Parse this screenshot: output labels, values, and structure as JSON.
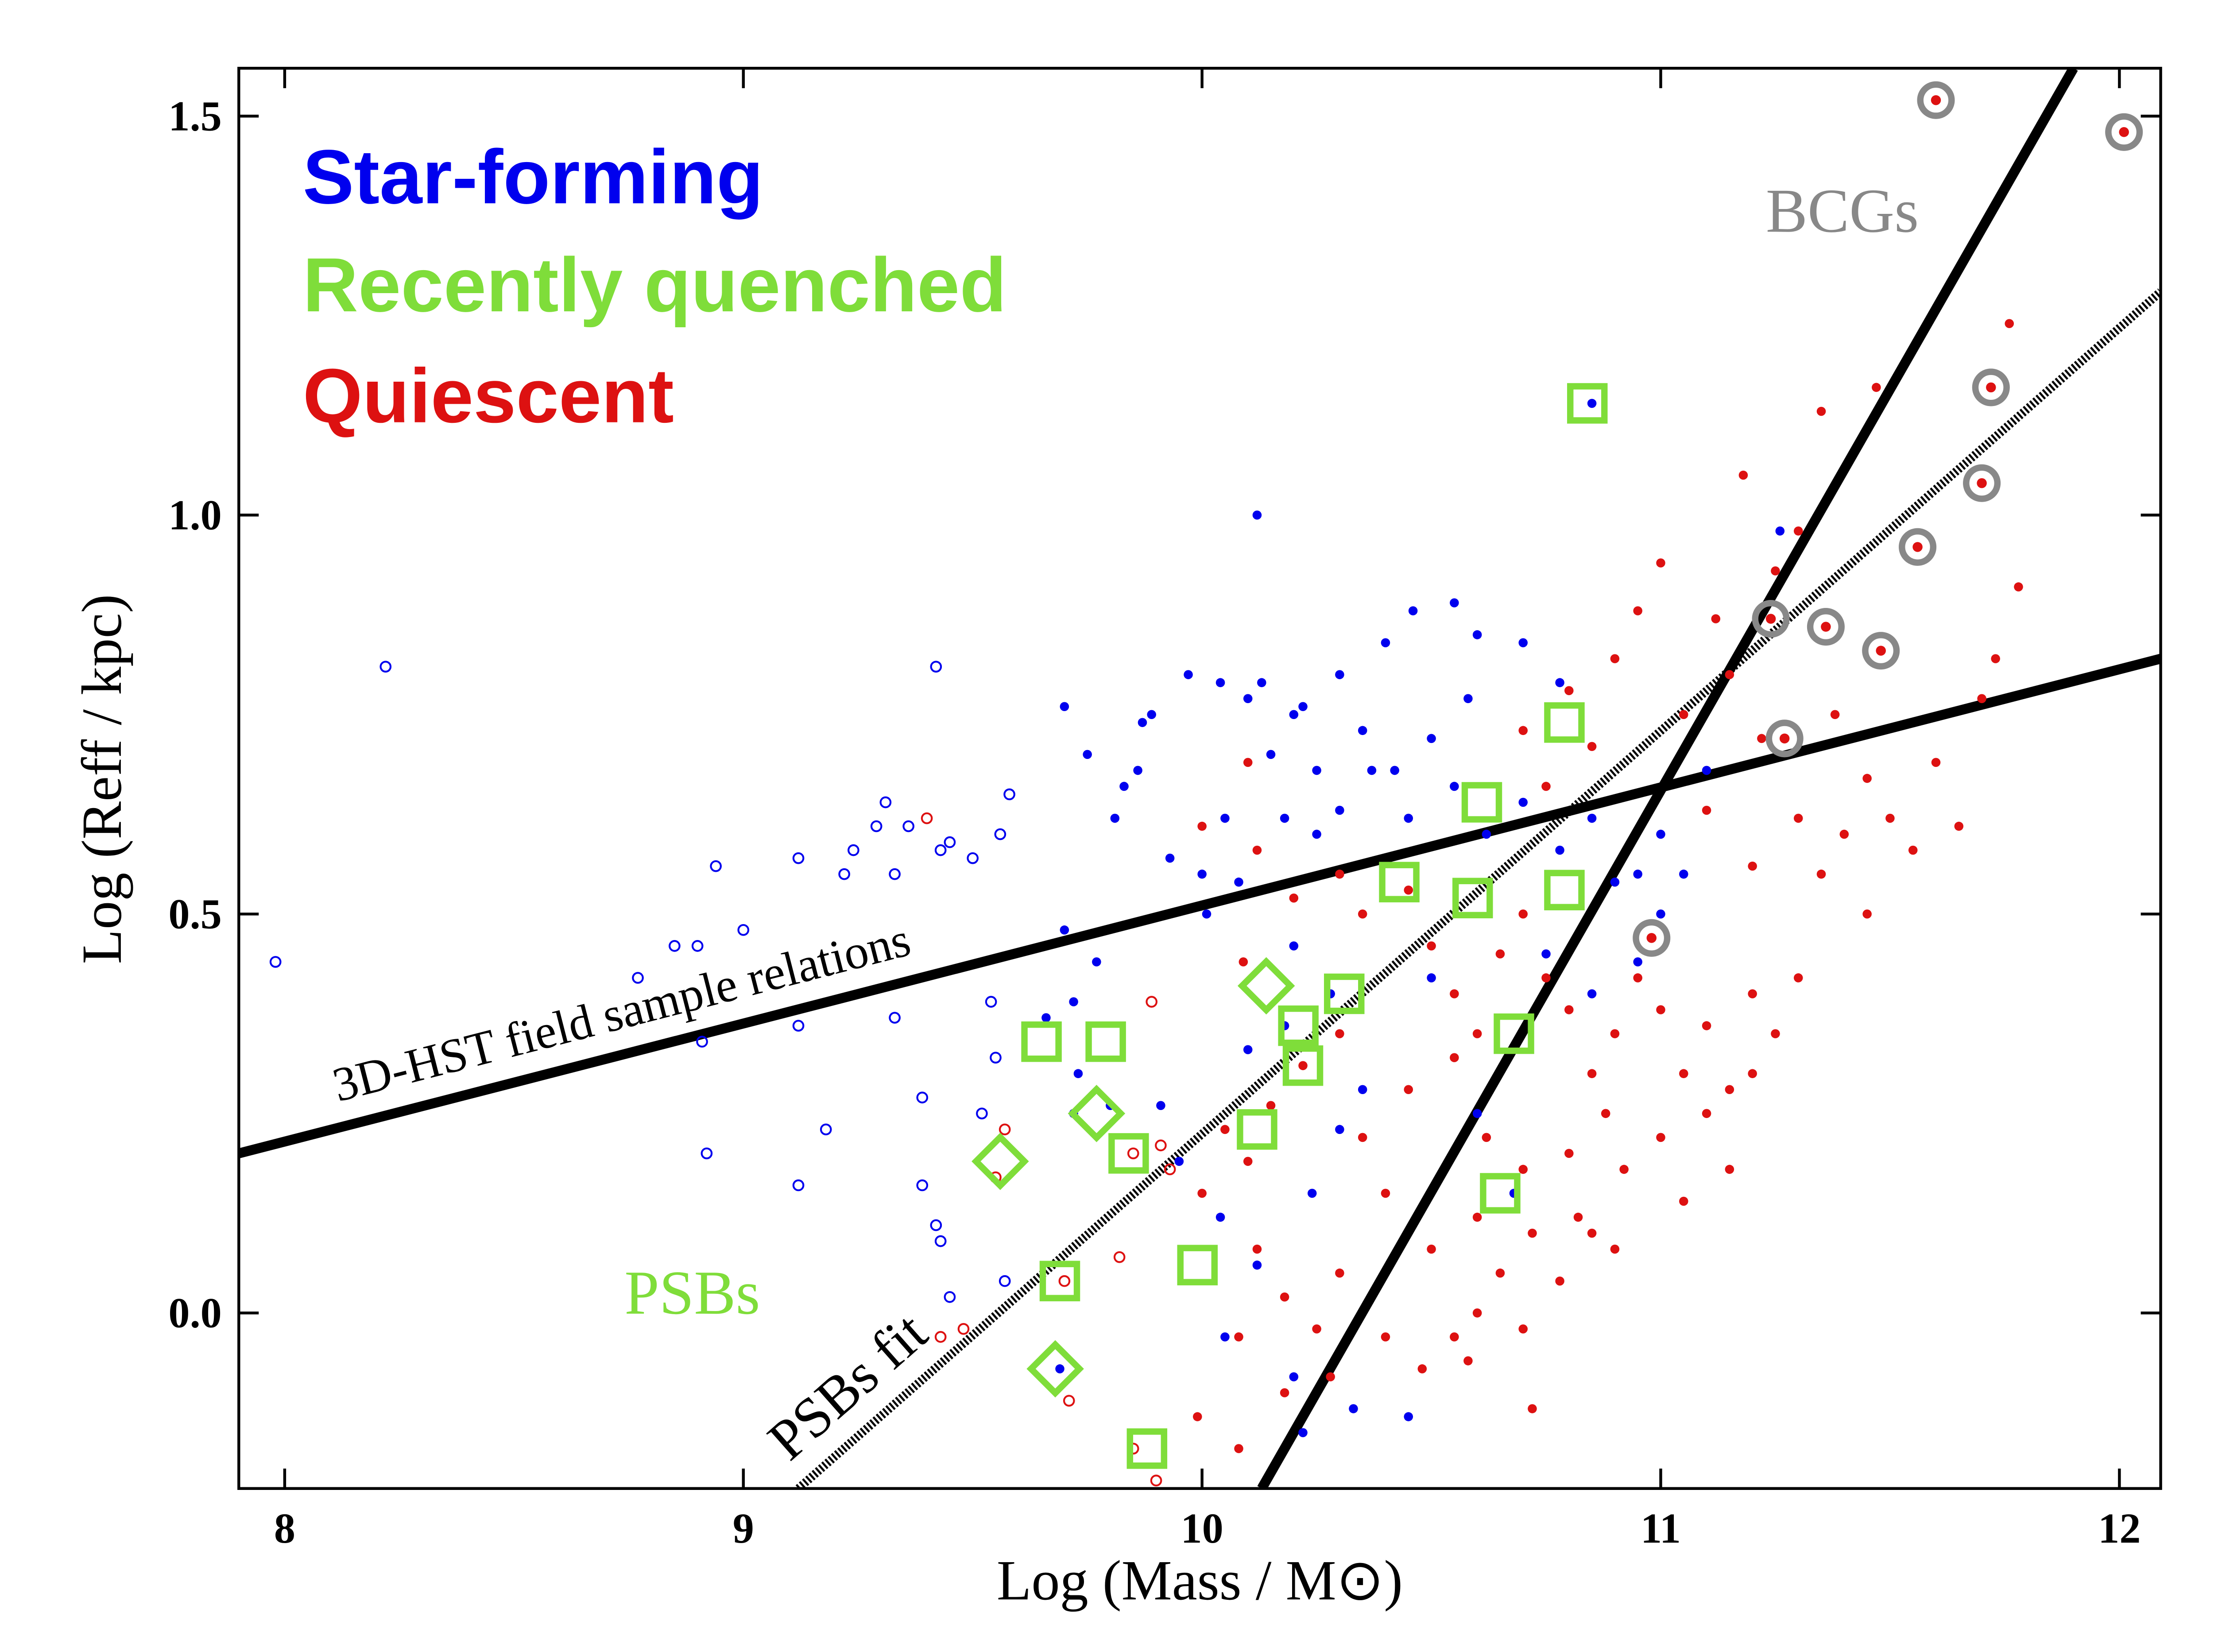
{
  "chart_data": {
    "type": "scatter",
    "xlabel": "Log (Mass / M⊙)",
    "ylabel": "Log (Reff / kpc)",
    "xlim": [
      7.9,
      12.09
    ],
    "ylim": [
      -0.22,
      1.56
    ],
    "xticks": [
      8,
      9,
      10,
      11,
      12
    ],
    "yticks": [
      {
        "value": 0,
        "label": "0.0"
      },
      0.5,
      {
        "value": 1,
        "label": "1.0"
      },
      1.5
    ],
    "series": [
      {
        "name": "Star-forming",
        "color": "#0000ee",
        "x": [
          10.12,
          9.7,
          9.75,
          9.81,
          9.83,
          9.87,
          9.89,
          9.86,
          9.97,
          10.04,
          10.1,
          10.13,
          10.2,
          10.22,
          10.3,
          10.4,
          10.46,
          10.55,
          10.6,
          10.7,
          10.78,
          10.58,
          10.5,
          10.42,
          10.35,
          10.25,
          10.15,
          10.05,
          10.0,
          9.93,
          10.01,
          10.08,
          10.18,
          10.25,
          10.3,
          10.37,
          10.45,
          10.55,
          10.62,
          10.7,
          10.78,
          10.9,
          10.95,
          11.0,
          11.1,
          11.26,
          10.85,
          9.7,
          9.77,
          9.72,
          9.66,
          9.73,
          9.72,
          9.8,
          9.91,
          9.95,
          10.04,
          10.1,
          10.2,
          10.28,
          10.18,
          10.35,
          10.24,
          10.3,
          10.12,
          10.05,
          10.2,
          10.33,
          10.22,
          10.45,
          10.6,
          10.68,
          10.75,
          10.85,
          10.95,
          11.0,
          10.85,
          11.05,
          10.5,
          9.69
        ],
        "values": [
          1.0,
          0.76,
          0.7,
          0.62,
          0.66,
          0.74,
          0.75,
          0.68,
          0.8,
          0.79,
          0.77,
          0.79,
          0.75,
          0.76,
          0.8,
          0.84,
          0.88,
          0.89,
          0.85,
          0.84,
          0.79,
          0.77,
          0.72,
          0.68,
          0.73,
          0.68,
          0.7,
          0.62,
          0.55,
          0.57,
          0.5,
          0.54,
          0.62,
          0.6,
          0.63,
          0.68,
          0.62,
          0.66,
          0.6,
          0.64,
          0.58,
          0.54,
          0.55,
          0.6,
          0.68,
          0.98,
          1.14,
          0.48,
          0.44,
          0.39,
          0.37,
          0.3,
          0.25,
          0.26,
          0.26,
          0.19,
          0.12,
          0.33,
          0.46,
          0.4,
          0.36,
          0.28,
          0.15,
          0.23,
          0.06,
          -0.03,
          -0.08,
          -0.12,
          -0.15,
          -0.13,
          0.25,
          0.15,
          0.45,
          0.4,
          0.44,
          0.5,
          0.62,
          0.55,
          0.42,
          -0.07
        ],
        "open": {
          "x": [
            7.98,
            8.22,
            8.77,
            8.85,
            8.9,
            8.94,
            9.0,
            9.12,
            9.22,
            9.24,
            9.29,
            9.31,
            9.33,
            9.36,
            9.43,
            9.45,
            9.5,
            9.56,
            9.58,
            9.42,
            9.33,
            9.12,
            8.91,
            8.92,
            9.12,
            9.18,
            9.39,
            9.54,
            9.55,
            9.52,
            9.39,
            9.42,
            9.43,
            9.57,
            9.45
          ],
          "values": [
            0.44,
            0.81,
            0.42,
            0.46,
            0.46,
            0.56,
            0.48,
            0.57,
            0.55,
            0.58,
            0.61,
            0.64,
            0.55,
            0.61,
            0.58,
            0.59,
            0.57,
            0.6,
            0.65,
            0.81,
            0.37,
            0.36,
            0.34,
            0.2,
            0.16,
            0.23,
            0.27,
            0.39,
            0.32,
            0.25,
            0.16,
            0.11,
            0.09,
            0.04,
            0.02
          ]
        }
      },
      {
        "name": "Recently quenched",
        "color": "#7fdd3a",
        "x": [
          10.84,
          10.79,
          10.61,
          10.43,
          10.59,
          10.79,
          10.31,
          9.65,
          9.79,
          10.21,
          10.22,
          10.68,
          10.12,
          9.84,
          10.65,
          9.99,
          9.69,
          9.88,
          10.14,
          9.77,
          9.56,
          9.68
        ],
        "values": [
          1.14,
          0.74,
          0.64,
          0.54,
          0.52,
          0.53,
          0.4,
          0.34,
          0.34,
          0.36,
          0.31,
          0.35,
          0.23,
          0.2,
          0.15,
          0.06,
          0.04,
          -0.17,
          0.41,
          0.25,
          0.19,
          -0.07
        ],
        "markers": [
          "square",
          "square",
          "square",
          "square",
          "square",
          "square",
          "square",
          "square",
          "square",
          "square",
          "square",
          "square",
          "square",
          "square",
          "square",
          "square",
          "square",
          "square",
          "diamond",
          "diamond",
          "diamond",
          "diamond"
        ]
      },
      {
        "name": "Quiescent",
        "color": "#dd1111",
        "x": [
          10.0,
          10.1,
          10.12,
          10.09,
          10.2,
          10.3,
          10.35,
          10.45,
          10.5,
          10.55,
          10.6,
          10.65,
          10.7,
          10.75,
          10.8,
          10.85,
          10.9,
          10.95,
          11.0,
          11.05,
          11.1,
          11.15,
          11.2,
          11.25,
          11.3,
          11.35,
          11.4,
          11.45,
          11.5,
          11.55,
          11.6,
          11.65,
          11.7,
          11.73,
          11.78,
          11.76,
          11.47,
          11.35,
          11.3,
          11.25,
          11.18,
          11.12,
          11.0,
          10.95,
          10.9,
          10.8,
          10.7,
          10.75,
          10.85,
          11.05,
          11.15,
          11.22,
          11.38,
          11.45,
          11.3,
          11.1,
          11.2,
          10.88,
          10.8,
          10.7,
          10.6,
          10.5,
          10.4,
          10.35,
          10.45,
          10.55,
          10.62,
          10.72,
          10.82,
          10.92,
          11.0,
          11.05,
          11.1,
          11.15,
          11.2,
          10.3,
          10.22,
          10.15,
          10.1,
          10.05,
          10.0,
          10.12,
          10.18,
          10.25,
          10.3,
          10.4,
          10.48,
          10.55,
          10.6,
          10.65,
          10.7,
          10.78,
          10.85,
          10.9,
          10.28,
          10.18,
          10.08,
          9.99,
          10.08,
          10.72,
          10.58
        ],
        "values": [
          0.61,
          0.69,
          0.58,
          0.44,
          0.52,
          0.55,
          0.5,
          0.53,
          0.46,
          0.4,
          0.35,
          0.45,
          0.5,
          0.42,
          0.38,
          0.3,
          0.35,
          0.42,
          0.38,
          0.3,
          0.36,
          0.28,
          0.4,
          0.35,
          0.42,
          0.55,
          0.6,
          0.5,
          0.62,
          0.58,
          0.69,
          0.61,
          0.77,
          0.82,
          0.91,
          1.24,
          1.16,
          1.13,
          0.98,
          0.93,
          1.05,
          0.87,
          0.94,
          0.88,
          0.82,
          0.78,
          0.73,
          0.66,
          0.71,
          0.75,
          0.8,
          0.72,
          0.75,
          0.67,
          0.62,
          0.63,
          0.56,
          0.25,
          0.2,
          0.18,
          0.12,
          0.08,
          0.15,
          0.22,
          0.28,
          0.32,
          0.22,
          0.1,
          0.12,
          0.18,
          0.22,
          0.14,
          0.25,
          0.18,
          0.3,
          0.35,
          0.31,
          0.26,
          0.19,
          0.23,
          0.15,
          0.08,
          0.02,
          -0.02,
          0.05,
          -0.03,
          -0.07,
          -0.03,
          0.0,
          0.05,
          -0.02,
          0.04,
          0.1,
          0.08,
          -0.08,
          -0.1,
          -0.03,
          -0.13,
          -0.17,
          -0.12,
          -0.06
        ],
        "open": {
          "x": [
            9.4,
            9.89,
            9.57,
            9.55,
            9.85,
            9.91,
            9.93,
            9.82,
            9.7,
            9.71,
            9.85,
            9.9,
            9.48,
            9.43
          ],
          "values": [
            0.62,
            0.39,
            0.23,
            0.17,
            0.2,
            0.21,
            0.18,
            0.07,
            0.04,
            -0.11,
            -0.17,
            -0.21,
            -0.02,
            -0.03
          ]
        }
      },
      {
        "name": "BCGs",
        "color": "#888888",
        "x": [
          11.6,
          12.01,
          11.72,
          11.7,
          11.56,
          11.36,
          11.48,
          11.24,
          11.27,
          10.98
        ],
        "values": [
          1.52,
          1.48,
          1.16,
          1.04,
          0.96,
          0.86,
          0.83,
          0.87,
          0.72,
          0.47
        ]
      }
    ],
    "lines": [
      {
        "x": [
          7.9,
          12.09
        ],
        "values": [
          0.2,
          0.82
        ],
        "style": "solid"
      },
      {
        "x": [
          10.13,
          11.9
        ],
        "values": [
          -0.22,
          1.56
        ],
        "style": "solid"
      },
      {
        "x": [
          9.12,
          12.09
        ],
        "values": [
          -0.22,
          1.28
        ],
        "style": "dotted"
      }
    ],
    "annotations": [
      "3D-HST field sample relations",
      "PSBs fit",
      "PSBs"
    ]
  }
}
